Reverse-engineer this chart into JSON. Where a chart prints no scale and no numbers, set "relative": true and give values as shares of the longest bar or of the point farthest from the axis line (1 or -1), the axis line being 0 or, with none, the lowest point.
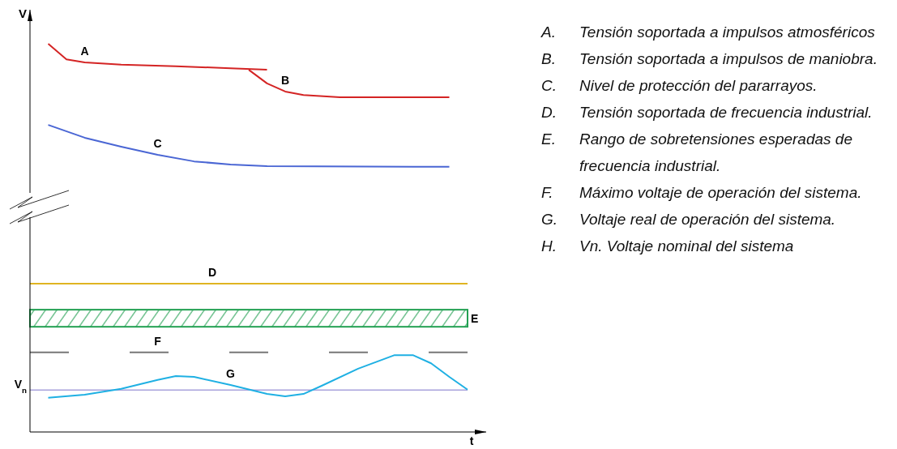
{
  "chart_data": {
    "type": "line",
    "relative": true,
    "xlabel": "t",
    "ylabel": "V",
    "categories": [
      null,
      null,
      null,
      null,
      null,
      null,
      null,
      null,
      null,
      null,
      null,
      null,
      null,
      null,
      null,
      null,
      null,
      null,
      null,
      null,
      null,
      null,
      null,
      null,
      null
    ],
    "series": [
      {
        "name": "A",
        "color": "#d42424",
        "values": [
          null,
          1.0,
          0.96,
          0.952,
          null,
          0.946,
          null,
          null,
          0.942,
          null,
          null,
          0.937,
          null,
          0.933,
          null,
          null,
          null,
          null,
          null,
          null,
          null,
          null,
          null,
          null,
          null
        ]
      },
      {
        "name": "B",
        "color": "#d42424",
        "values": [
          null,
          null,
          null,
          null,
          null,
          null,
          null,
          null,
          null,
          null,
          null,
          null,
          0.933,
          0.898,
          0.877,
          0.868,
          null,
          0.862,
          null,
          null,
          0.862,
          null,
          null,
          0.862,
          null
        ]
      },
      {
        "name": "C",
        "color": "#4a66d4",
        "values": [
          null,
          0.791,
          null,
          0.758,
          null,
          0.735,
          null,
          0.714,
          null,
          0.697,
          null,
          0.689,
          null,
          0.685,
          null,
          null,
          null,
          null,
          null,
          null,
          null,
          null,
          null,
          0.683,
          null
        ]
      },
      {
        "name": "D",
        "color": "#e0b422",
        "values": [
          0.382,
          0.382,
          0.382,
          0.382,
          0.382,
          0.382,
          0.382,
          0.382,
          0.382,
          0.382,
          0.382,
          0.382,
          0.382,
          0.382,
          0.382,
          0.382,
          0.382,
          0.382,
          0.382,
          0.382,
          0.382,
          0.382,
          0.382,
          0.382,
          0.382
        ]
      },
      {
        "name": "F",
        "color": "#777777",
        "line_style": "dashed",
        "values": [
          0.205,
          0.205,
          0.205,
          null,
          null,
          null,
          0.205,
          0.205,
          null,
          null,
          null,
          null,
          0.205,
          null,
          null,
          null,
          null,
          0.205,
          0.205,
          null,
          null,
          null,
          0.205,
          0.205,
          0.205
        ]
      },
      {
        "name": "G",
        "color": "#1fb0e3",
        "values": [
          null,
          0.088,
          null,
          0.096,
          null,
          0.111,
          null,
          0.134,
          0.144,
          0.142,
          null,
          0.121,
          null,
          0.098,
          0.092,
          0.098,
          0.119,
          null,
          0.163,
          null,
          0.198,
          0.198,
          0.177,
          0.142,
          0.109
        ]
      }
    ],
    "bands": [
      {
        "axis": "y",
        "from": 0.271,
        "to": 0.315,
        "label": "E",
        "color": "#22a052"
      }
    ],
    "ref_lines": [
      {
        "axis": "y",
        "value": 0.108,
        "label": "V$_{n}$",
        "color": "#a8a2dc"
      }
    ],
    "annotations": [
      "A. Tensión soportada a impulsos atmosféricos",
      "B. Tensión soportada a impulsos de maniobra.",
      "C. Nivel de protección del pararrayos.",
      "D. Tensión soportada de frecuencia industrial.",
      "E. Rango de sobretensiones esperadas de frecuencia industrial.",
      "F. Máximo voltaje de operación del sistema.",
      "G. Voltaje real de operación del sistema.",
      "H. Vn. Voltaje nominal del sistema"
    ]
  }
}
